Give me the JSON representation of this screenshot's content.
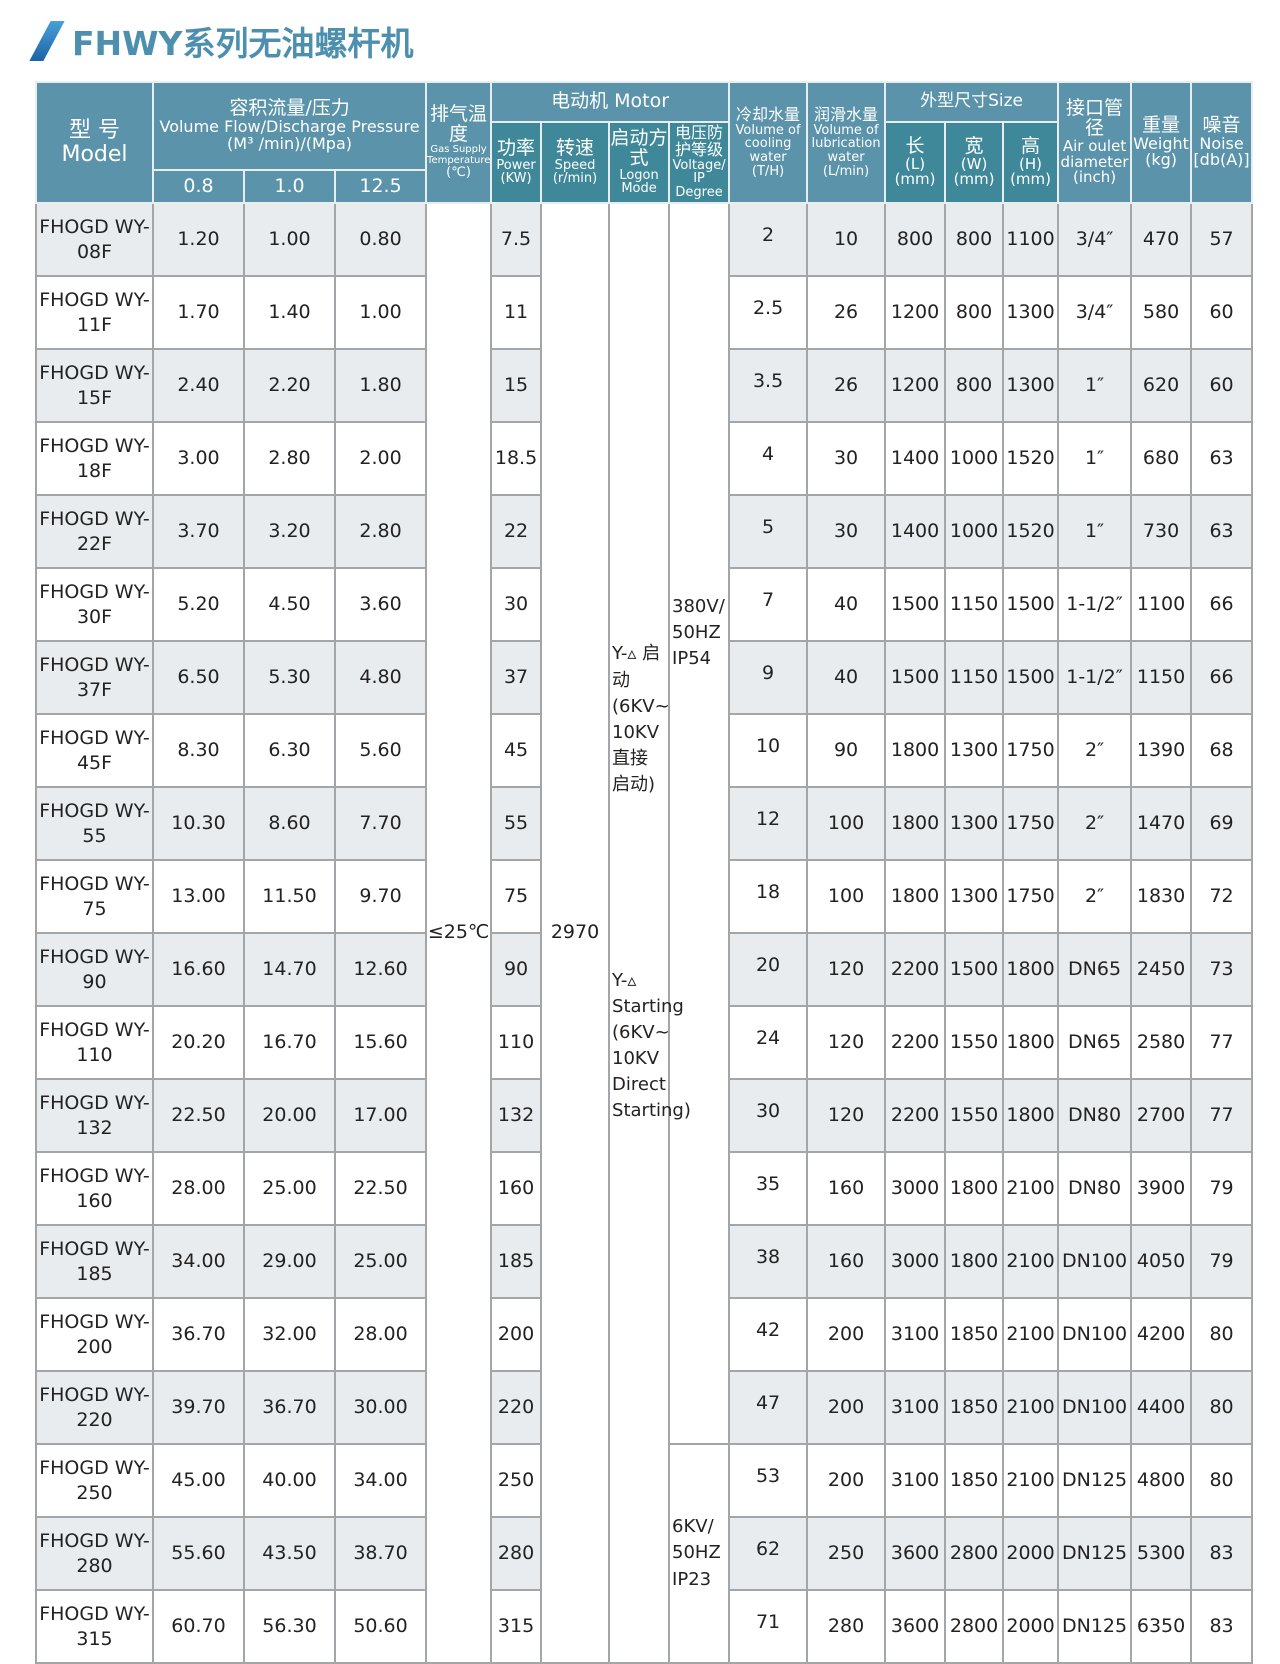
{
  "title": "FHWY系列无油螺杆机",
  "header": {
    "model_cn": "型 号",
    "model_en": "Model",
    "flow_cn": "容积流量/压力",
    "flow_en": "Volume Flow/Discharge Pressure",
    "flow_unit": "(M³ /min)/(Mpa)",
    "pressures": [
      "0.8",
      "1.0",
      "12.5"
    ],
    "temp_cn": "排气温度",
    "temp_en": "Gas Supply Temperature",
    "temp_unit": "(℃)",
    "motor": "电动机 Motor",
    "power_cn": "功率",
    "power_en": "Power (KW)",
    "speed_cn": "转速",
    "speed_en": "Speed (r/min)",
    "logon_cn": "启动方式",
    "logon_en": "Logon Mode",
    "voltage_cn": "电压防护等级",
    "voltage_en": "Voltage/ IP Degree",
    "cooling_cn": "冷却水量",
    "cooling_en": "Volume of cooling water",
    "cooling_unit": "(T/H)",
    "lub_cn": "润滑水量",
    "lub_en": "Volume of lubrication water",
    "lub_unit": "(L/min)",
    "size": "外型尺寸Size",
    "l_cn": "长",
    "l_en": "(L) (mm)",
    "w_cn": "宽",
    "w_en": "(W) (mm)",
    "h_cn": "高",
    "h_en": "(H) (mm)",
    "outlet_cn": "接口管径",
    "outlet_en": "Air oulet diameter",
    "outlet_unit": "(inch)",
    "weight_cn": "重量",
    "weight_en": "Weight (kg)",
    "noise_cn": "噪音",
    "noise_en": "Noise [db(A)]"
  },
  "merged": {
    "temperature": "≤25℃",
    "speed": "2970",
    "logon_cn": "Y-▵ 启动 (6KV~ 10KV 直接 启动)",
    "logon_en": "Y-▵ Starting (6KV~ 10KV Direct Starting)",
    "voltage_low": "380V/ 50HZ IP54",
    "voltage_high": "6KV/ 50HZ IP23"
  },
  "rows": [
    {
      "model": "FHOGD WY-08F",
      "f": [
        "1.20",
        "1.00",
        "0.80"
      ],
      "power": "7.5",
      "cool": "2",
      "lub": "10",
      "l": "800",
      "w": "800",
      "h": "1100",
      "outlet": "3/4″",
      "weight": "470",
      "noise": "57"
    },
    {
      "model": "FHOGD WY-11F",
      "f": [
        "1.70",
        "1.40",
        "1.00"
      ],
      "power": "11",
      "cool": "2.5",
      "lub": "26",
      "l": "1200",
      "w": "800",
      "h": "1300",
      "outlet": "3/4″",
      "weight": "580",
      "noise": "60"
    },
    {
      "model": "FHOGD WY-15F",
      "f": [
        "2.40",
        "2.20",
        "1.80"
      ],
      "power": "15",
      "cool": "3.5",
      "lub": "26",
      "l": "1200",
      "w": "800",
      "h": "1300",
      "outlet": "1″",
      "weight": "620",
      "noise": "60"
    },
    {
      "model": "FHOGD WY-18F",
      "f": [
        "3.00",
        "2.80",
        "2.00"
      ],
      "power": "18.5",
      "cool": "4",
      "lub": "30",
      "l": "1400",
      "w": "1000",
      "h": "1520",
      "outlet": "1″",
      "weight": "680",
      "noise": "63"
    },
    {
      "model": "FHOGD WY-22F",
      "f": [
        "3.70",
        "3.20",
        "2.80"
      ],
      "power": "22",
      "cool": "5",
      "lub": "30",
      "l": "1400",
      "w": "1000",
      "h": "1520",
      "outlet": "1″",
      "weight": "730",
      "noise": "63"
    },
    {
      "model": "FHOGD WY-30F",
      "f": [
        "5.20",
        "4.50",
        "3.60"
      ],
      "power": "30",
      "cool": "7",
      "lub": "40",
      "l": "1500",
      "w": "1150",
      "h": "1500",
      "outlet": "1-1/2″",
      "weight": "1100",
      "noise": "66"
    },
    {
      "model": "FHOGD WY-37F",
      "f": [
        "6.50",
        "5.30",
        "4.80"
      ],
      "power": "37",
      "cool": "9",
      "lub": "40",
      "l": "1500",
      "w": "1150",
      "h": "1500",
      "outlet": "1-1/2″",
      "weight": "1150",
      "noise": "66"
    },
    {
      "model": "FHOGD WY-45F",
      "f": [
        "8.30",
        "6.30",
        "5.60"
      ],
      "power": "45",
      "cool": "10",
      "lub": "90",
      "l": "1800",
      "w": "1300",
      "h": "1750",
      "outlet": "2″",
      "weight": "1390",
      "noise": "68"
    },
    {
      "model": "FHOGD WY-55",
      "f": [
        "10.30",
        "8.60",
        "7.70"
      ],
      "power": "55",
      "cool": "12",
      "lub": "100",
      "l": "1800",
      "w": "1300",
      "h": "1750",
      "outlet": "2″",
      "weight": "1470",
      "noise": "69"
    },
    {
      "model": "FHOGD WY-75",
      "f": [
        "13.00",
        "11.50",
        "9.70"
      ],
      "power": "75",
      "cool": "18",
      "lub": "100",
      "l": "1800",
      "w": "1300",
      "h": "1750",
      "outlet": "2″",
      "weight": "1830",
      "noise": "72"
    },
    {
      "model": "FHOGD WY-90",
      "f": [
        "16.60",
        "14.70",
        "12.60"
      ],
      "power": "90",
      "cool": "20",
      "lub": "120",
      "l": "2200",
      "w": "1500",
      "h": "1800",
      "outlet": "DN65",
      "weight": "2450",
      "noise": "73"
    },
    {
      "model": "FHOGD WY-110",
      "f": [
        "20.20",
        "16.70",
        "15.60"
      ],
      "power": "110",
      "cool": "24",
      "lub": "120",
      "l": "2200",
      "w": "1550",
      "h": "1800",
      "outlet": "DN65",
      "weight": "2580",
      "noise": "77"
    },
    {
      "model": "FHOGD WY-132",
      "f": [
        "22.50",
        "20.00",
        "17.00"
      ],
      "power": "132",
      "cool": "30",
      "lub": "120",
      "l": "2200",
      "w": "1550",
      "h": "1800",
      "outlet": "DN80",
      "weight": "2700",
      "noise": "77"
    },
    {
      "model": "FHOGD WY-160",
      "f": [
        "28.00",
        "25.00",
        "22.50"
      ],
      "power": "160",
      "cool": "35",
      "lub": "160",
      "l": "3000",
      "w": "1800",
      "h": "2100",
      "outlet": "DN80",
      "weight": "3900",
      "noise": "79"
    },
    {
      "model": "FHOGD WY-185",
      "f": [
        "34.00",
        "29.00",
        "25.00"
      ],
      "power": "185",
      "cool": "38",
      "lub": "160",
      "l": "3000",
      "w": "1800",
      "h": "2100",
      "outlet": "DN100",
      "weight": "4050",
      "noise": "79"
    },
    {
      "model": "FHOGD WY-200",
      "f": [
        "36.70",
        "32.00",
        "28.00"
      ],
      "power": "200",
      "cool": "42",
      "lub": "200",
      "l": "3100",
      "w": "1850",
      "h": "2100",
      "outlet": "DN100",
      "weight": "4200",
      "noise": "80"
    },
    {
      "model": "FHOGD WY-220",
      "f": [
        "39.70",
        "36.70",
        "30.00"
      ],
      "power": "220",
      "cool": "47",
      "lub": "200",
      "l": "3100",
      "w": "1850",
      "h": "2100",
      "outlet": "DN100",
      "weight": "4400",
      "noise": "80"
    },
    {
      "model": "FHOGD WY-250",
      "f": [
        "45.00",
        "40.00",
        "34.00"
      ],
      "power": "250",
      "cool": "53",
      "lub": "200",
      "l": "3100",
      "w": "1850",
      "h": "2100",
      "outlet": "DN125",
      "weight": "4800",
      "noise": "80"
    },
    {
      "model": "FHOGD WY-280",
      "f": [
        "55.60",
        "43.50",
        "38.70"
      ],
      "power": "280",
      "cool": "62",
      "lub": "250",
      "l": "3600",
      "w": "2800",
      "h": "2000",
      "outlet": "DN125",
      "weight": "5300",
      "noise": "83"
    },
    {
      "model": "FHOGD WY-315",
      "f": [
        "60.70",
        "56.30",
        "50.60"
      ],
      "power": "315",
      "cool": "71",
      "lub": "280",
      "l": "3600",
      "w": "2800",
      "h": "2000",
      "outlet": "DN125",
      "weight": "6350",
      "noise": "83"
    }
  ],
  "colors": {
    "header": "#5a93aa",
    "subheader": "#3f889a",
    "title": "#4d8fae",
    "row_alt": "#e8ecef"
  }
}
